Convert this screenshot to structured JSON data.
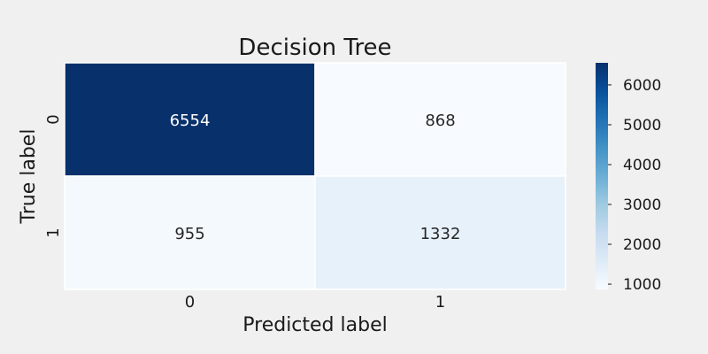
{
  "chart_data": {
    "type": "heatmap",
    "title": "Decision Tree",
    "xlabel": "Predicted label",
    "ylabel": "True label",
    "x_categories": [
      "0",
      "1"
    ],
    "y_categories": [
      "0",
      "1"
    ],
    "values": [
      [
        6554,
        868
      ],
      [
        955,
        1332
      ]
    ],
    "colormap": "Blues",
    "colorbar": {
      "range": [
        868,
        6554
      ],
      "ticks": [
        1000,
        2000,
        3000,
        4000,
        5000,
        6000
      ]
    },
    "grid": false
  },
  "colors": {
    "background": "#f0f0f0",
    "cell_grid": "#ffffff",
    "text_dark": "#262626",
    "text_light": "#ffffff"
  }
}
